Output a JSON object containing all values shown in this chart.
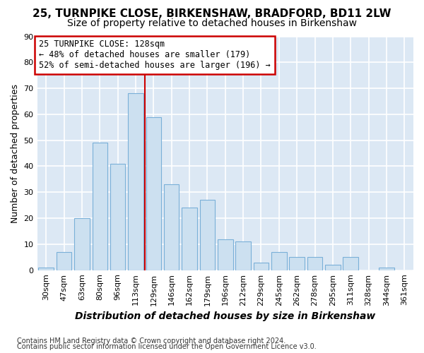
{
  "title1": "25, TURNPIKE CLOSE, BIRKENSHAW, BRADFORD, BD11 2LW",
  "title2": "Size of property relative to detached houses in Birkenshaw",
  "xlabel": "Distribution of detached houses by size in Birkenshaw",
  "ylabel": "Number of detached properties",
  "footnote1": "Contains HM Land Registry data © Crown copyright and database right 2024.",
  "footnote2": "Contains public sector information licensed under the Open Government Licence v3.0.",
  "categories": [
    "30sqm",
    "47sqm",
    "63sqm",
    "80sqm",
    "96sqm",
    "113sqm",
    "129sqm",
    "146sqm",
    "162sqm",
    "179sqm",
    "196sqm",
    "212sqm",
    "229sqm",
    "245sqm",
    "262sqm",
    "278sqm",
    "295sqm",
    "311sqm",
    "328sqm",
    "344sqm",
    "361sqm"
  ],
  "values": [
    1,
    7,
    20,
    49,
    41,
    68,
    59,
    33,
    24,
    27,
    12,
    11,
    3,
    7,
    5,
    5,
    2,
    5,
    0,
    1,
    0
  ],
  "bar_color": "#cce0f0",
  "bar_edge_color": "#7ab0d8",
  "vline_color": "#cc0000",
  "annotation_line1": "25 TURNPIKE CLOSE: 128sqm",
  "annotation_line2": "← 48% of detached houses are smaller (179)",
  "annotation_line3": "52% of semi-detached houses are larger (196) →",
  "annotation_box_color": "#ffffff",
  "annotation_box_edge": "#cc0000",
  "ylim": [
    0,
    90
  ],
  "yticks": [
    0,
    10,
    20,
    30,
    40,
    50,
    60,
    70,
    80,
    90
  ],
  "bg_color": "#dce8f4",
  "fig_color": "#ffffff",
  "grid_color": "#ffffff",
  "title1_fontsize": 11,
  "title2_fontsize": 10,
  "xlabel_fontsize": 10,
  "ylabel_fontsize": 9,
  "tick_fontsize": 8,
  "annotation_fontsize": 8.5,
  "footnote_fontsize": 7
}
